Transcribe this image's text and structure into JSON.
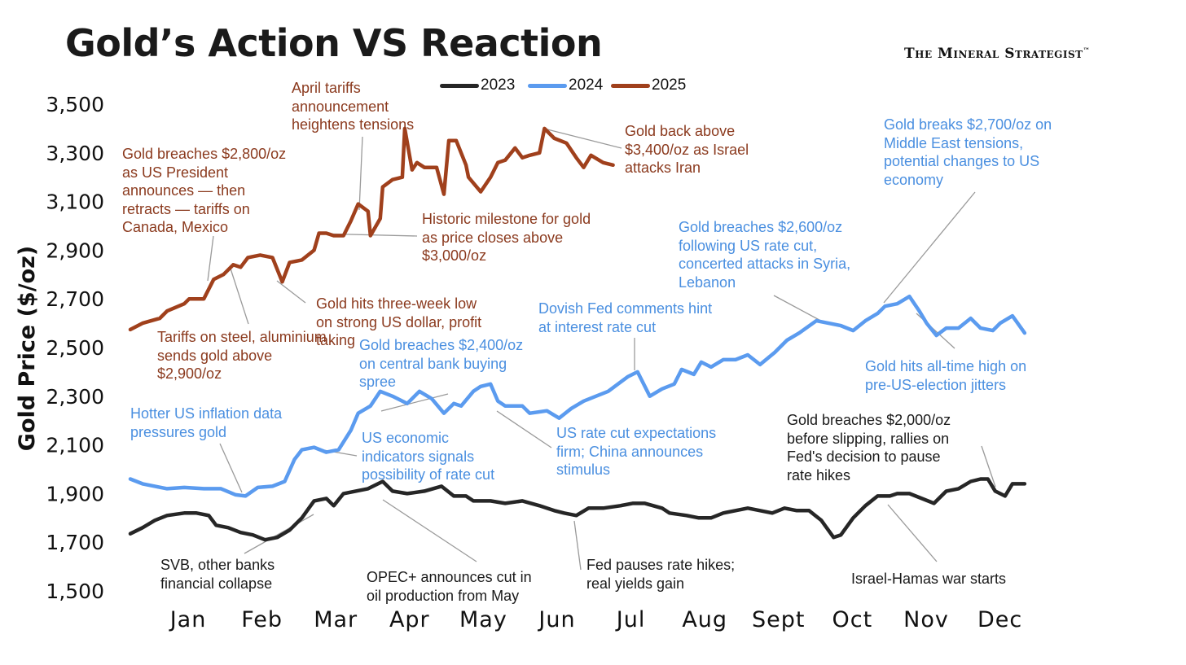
{
  "header": {
    "title": "Gold’s Action VS Reaction",
    "brand": "The Mineral Strategist",
    "brand_mark": "™"
  },
  "chart_data": {
    "type": "line",
    "title": "Gold’s Action VS Reaction",
    "ylabel": "Gold Price ($/oz)",
    "xlabel": "",
    "x_unit": "day of year",
    "ylim": [
      1500,
      3500
    ],
    "yticks": [
      "3,500",
      "3,300",
      "3,100",
      "2,900",
      "2,700",
      "2,500",
      "2,300",
      "2,100",
      "1,900",
      "1,700",
      "1,500"
    ],
    "ytick_values": [
      3500,
      3300,
      3100,
      2900,
      2700,
      2500,
      2300,
      2100,
      1900,
      1700,
      1500
    ],
    "xticks": [
      "Jan",
      "Feb",
      "Mar",
      "Apr",
      "May",
      "Jun",
      "Jul",
      "Aug",
      "Sept",
      "Oct",
      "Nov",
      "Dec"
    ],
    "legend_placement": "top-center",
    "series": [
      {
        "name": "2023",
        "color": "#262626",
        "points": [
          [
            0,
            1735
          ],
          [
            5,
            1760
          ],
          [
            10,
            1790
          ],
          [
            15,
            1810
          ],
          [
            22,
            1820
          ],
          [
            27,
            1820
          ],
          [
            32,
            1810
          ],
          [
            35,
            1770
          ],
          [
            40,
            1760
          ],
          [
            45,
            1740
          ],
          [
            50,
            1730
          ],
          [
            55,
            1710
          ],
          [
            60,
            1720
          ],
          [
            65,
            1750
          ],
          [
            70,
            1800
          ],
          [
            75,
            1870
          ],
          [
            80,
            1880
          ],
          [
            83,
            1850
          ],
          [
            87,
            1900
          ],
          [
            92,
            1910
          ],
          [
            97,
            1920
          ],
          [
            103,
            1950
          ],
          [
            107,
            1910
          ],
          [
            113,
            1900
          ],
          [
            120,
            1910
          ],
          [
            127,
            1930
          ],
          [
            132,
            1890
          ],
          [
            137,
            1890
          ],
          [
            140,
            1870
          ],
          [
            147,
            1870
          ],
          [
            153,
            1860
          ],
          [
            160,
            1870
          ],
          [
            167,
            1850
          ],
          [
            173,
            1830
          ],
          [
            177,
            1820
          ],
          [
            182,
            1810
          ],
          [
            187,
            1840
          ],
          [
            193,
            1840
          ],
          [
            200,
            1850
          ],
          [
            205,
            1860
          ],
          [
            210,
            1860
          ],
          [
            217,
            1840
          ],
          [
            220,
            1820
          ],
          [
            227,
            1810
          ],
          [
            232,
            1800
          ],
          [
            237,
            1800
          ],
          [
            242,
            1820
          ],
          [
            247,
            1830
          ],
          [
            252,
            1840
          ],
          [
            257,
            1830
          ],
          [
            262,
            1820
          ],
          [
            267,
            1840
          ],
          [
            272,
            1830
          ],
          [
            277,
            1830
          ],
          [
            282,
            1790
          ],
          [
            287,
            1720
          ],
          [
            290,
            1730
          ],
          [
            295,
            1800
          ],
          [
            300,
            1850
          ],
          [
            305,
            1890
          ],
          [
            310,
            1890
          ],
          [
            313,
            1900
          ],
          [
            318,
            1900
          ],
          [
            323,
            1880
          ],
          [
            328,
            1860
          ],
          [
            333,
            1910
          ],
          [
            338,
            1920
          ],
          [
            343,
            1950
          ],
          [
            347,
            1960
          ],
          [
            350,
            1960
          ],
          [
            353,
            1910
          ],
          [
            357,
            1890
          ],
          [
            360,
            1940
          ],
          [
            365,
            1940
          ]
        ]
      },
      {
        "name": "2024",
        "color": "#5b9bef",
        "points": [
          [
            0,
            1960
          ],
          [
            5,
            1940
          ],
          [
            10,
            1930
          ],
          [
            15,
            1920
          ],
          [
            22,
            1925
          ],
          [
            30,
            1920
          ],
          [
            37,
            1920
          ],
          [
            43,
            1895
          ],
          [
            47,
            1890
          ],
          [
            52,
            1925
          ],
          [
            58,
            1930
          ],
          [
            63,
            1950
          ],
          [
            67,
            2040
          ],
          [
            70,
            2080
          ],
          [
            75,
            2090
          ],
          [
            80,
            2070
          ],
          [
            85,
            2080
          ],
          [
            90,
            2160
          ],
          [
            93,
            2230
          ],
          [
            98,
            2260
          ],
          [
            102,
            2320
          ],
          [
            107,
            2300
          ],
          [
            113,
            2270
          ],
          [
            118,
            2320
          ],
          [
            123,
            2290
          ],
          [
            128,
            2230
          ],
          [
            132,
            2270
          ],
          [
            135,
            2260
          ],
          [
            140,
            2320
          ],
          [
            143,
            2340
          ],
          [
            147,
            2350
          ],
          [
            150,
            2280
          ],
          [
            153,
            2260
          ],
          [
            160,
            2260
          ],
          [
            163,
            2230
          ],
          [
            170,
            2240
          ],
          [
            175,
            2210
          ],
          [
            180,
            2250
          ],
          [
            185,
            2280
          ],
          [
            190,
            2300
          ],
          [
            195,
            2320
          ],
          [
            203,
            2380
          ],
          [
            207,
            2400
          ],
          [
            212,
            2300
          ],
          [
            217,
            2330
          ],
          [
            222,
            2350
          ],
          [
            225,
            2410
          ],
          [
            230,
            2390
          ],
          [
            233,
            2440
          ],
          [
            237,
            2420
          ],
          [
            242,
            2450
          ],
          [
            247,
            2450
          ],
          [
            252,
            2470
          ],
          [
            257,
            2430
          ],
          [
            263,
            2480
          ],
          [
            268,
            2530
          ],
          [
            273,
            2560
          ],
          [
            280,
            2610
          ],
          [
            285,
            2600
          ],
          [
            290,
            2590
          ],
          [
            295,
            2570
          ],
          [
            300,
            2610
          ],
          [
            305,
            2640
          ],
          [
            308,
            2670
          ],
          [
            313,
            2680
          ],
          [
            318,
            2710
          ],
          [
            322,
            2650
          ],
          [
            325,
            2600
          ],
          [
            329,
            2550
          ],
          [
            333,
            2580
          ],
          [
            338,
            2580
          ],
          [
            343,
            2620
          ],
          [
            347,
            2580
          ],
          [
            352,
            2570
          ],
          [
            355,
            2600
          ],
          [
            360,
            2630
          ],
          [
            365,
            2560
          ]
        ]
      },
      {
        "name": "2025",
        "color": "#a0401c",
        "points": [
          [
            0,
            2574
          ],
          [
            5,
            2600
          ],
          [
            12,
            2620
          ],
          [
            15,
            2650
          ],
          [
            22,
            2680
          ],
          [
            24,
            2700
          ],
          [
            30,
            2700
          ],
          [
            34,
            2780
          ],
          [
            38,
            2800
          ],
          [
            42,
            2840
          ],
          [
            45,
            2830
          ],
          [
            48,
            2870
          ],
          [
            53,
            2880
          ],
          [
            58,
            2870
          ],
          [
            62,
            2770
          ],
          [
            65,
            2850
          ],
          [
            70,
            2860
          ],
          [
            75,
            2900
          ],
          [
            77,
            2970
          ],
          [
            80,
            2970
          ],
          [
            83,
            2960
          ],
          [
            87,
            2960
          ],
          [
            90,
            3020
          ],
          [
            93,
            3090
          ],
          [
            97,
            3060
          ],
          [
            98,
            2960
          ],
          [
            102,
            3030
          ],
          [
            103,
            3160
          ],
          [
            107,
            3190
          ],
          [
            111,
            3200
          ],
          [
            112,
            3400
          ],
          [
            115,
            3230
          ],
          [
            117,
            3260
          ],
          [
            120,
            3240
          ],
          [
            125,
            3240
          ],
          [
            128,
            3130
          ],
          [
            130,
            3350
          ],
          [
            133,
            3350
          ],
          [
            137,
            3250
          ],
          [
            138,
            3200
          ],
          [
            143,
            3140
          ],
          [
            147,
            3200
          ],
          [
            150,
            3260
          ],
          [
            153,
            3270
          ],
          [
            157,
            3320
          ],
          [
            160,
            3280
          ],
          [
            163,
            3290
          ],
          [
            167,
            3300
          ],
          [
            169,
            3400
          ],
          [
            173,
            3360
          ],
          [
            178,
            3340
          ],
          [
            182,
            3280
          ],
          [
            185,
            3240
          ],
          [
            188,
            3290
          ],
          [
            193,
            3260
          ],
          [
            197,
            3250
          ]
        ]
      }
    ],
    "annotations": [
      {
        "color": "#8b3a1e",
        "lines": [
          "April tariffs",
          "announcement",
          "heightens tensions"
        ]
      },
      {
        "color": "#8b3a1e",
        "lines": [
          "Gold breaches $2,800/oz",
          "as US President",
          "announces — then",
          "retracts — tariffs on",
          "Canada, Mexico"
        ]
      },
      {
        "color": "#8b3a1e",
        "lines": [
          "Historic milestone for gold",
          "as price closes above",
          "$3,000/oz"
        ]
      },
      {
        "color": "#8b3a1e",
        "lines": [
          "Gold hits three-week low",
          "on strong US dollar, profit",
          "taking"
        ]
      },
      {
        "color": "#8b3a1e",
        "lines": [
          "Tariffs on steel, aluminium",
          "sends gold above",
          "$2,900/oz"
        ]
      },
      {
        "color": "#8b3a1e",
        "lines": [
          "Gold back above",
          "$3,400/oz as Israel",
          "attacks Iran"
        ]
      },
      {
        "color": "#4a8fe0",
        "lines": [
          "Gold breaks $2,700/oz on",
          "Middle East tensions,",
          "potential changes to US",
          "economy"
        ]
      },
      {
        "color": "#4a8fe0",
        "lines": [
          "Gold breaches $2,600/oz",
          "following US rate cut,",
          "concerted attacks in Syria,",
          "Lebanon"
        ]
      },
      {
        "color": "#4a8fe0",
        "lines": [
          "Dovish Fed comments hint",
          "at interest rate cut"
        ]
      },
      {
        "color": "#4a8fe0",
        "lines": [
          "Gold breaches $2,400/oz",
          "on central bank buying",
          "spree"
        ]
      },
      {
        "color": "#4a8fe0",
        "lines": [
          "Gold hits all-time high on",
          "pre-US-election jitters"
        ]
      },
      {
        "color": "#4a8fe0",
        "lines": [
          "Hotter US inflation data",
          "pressures gold"
        ]
      },
      {
        "color": "#4a8fe0",
        "lines": [
          "US economic",
          "indicators signals",
          "possibility of rate cut"
        ]
      },
      {
        "color": "#4a8fe0",
        "lines": [
          "US rate cut expectations",
          "firm; China announces",
          "stimulus"
        ]
      },
      {
        "color": "#1a1a1a",
        "lines": [
          "Gold breaches $2,000/oz",
          "before slipping, rallies on",
          "Fed's decision to pause",
          "rate hikes"
        ]
      },
      {
        "color": "#1a1a1a",
        "lines": [
          "SVB, other banks",
          "financial collapse"
        ]
      },
      {
        "color": "#1a1a1a",
        "lines": [
          "OPEC+ announces cut in",
          "oil production from May"
        ]
      },
      {
        "color": "#1a1a1a",
        "lines": [
          "Fed pauses rate hikes;",
          "real yields gain"
        ]
      },
      {
        "color": "#1a1a1a",
        "lines": [
          "Israel-Hamas war starts"
        ]
      }
    ]
  }
}
